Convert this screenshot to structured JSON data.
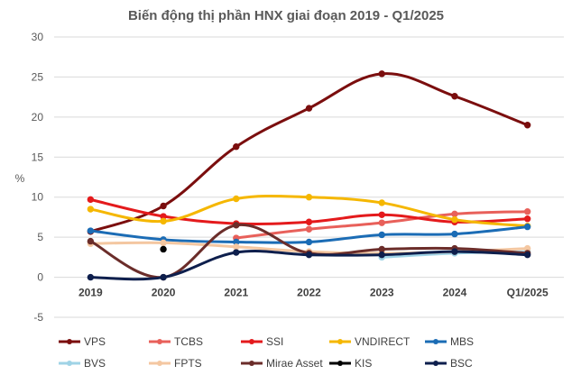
{
  "chart_data": {
    "type": "line",
    "title": "Biến động thị phần HNX giai đoạn 2019 - Q1/2025",
    "xlabel": "",
    "ylabel": "%",
    "categories": [
      "2019",
      "2020",
      "2021",
      "2022",
      "2023",
      "2024",
      "Q1/2025"
    ],
    "ylim": [
      -5,
      30
    ],
    "yticks": [
      -5,
      0,
      5,
      10,
      15,
      20,
      25,
      30
    ],
    "grid": true,
    "legend_position": "bottom",
    "series": [
      {
        "name": "VPS",
        "color": "#7b0e0e",
        "values": [
          5.7,
          8.9,
          16.3,
          21.1,
          25.4,
          22.6,
          19.0
        ]
      },
      {
        "name": "TCBS",
        "color": "#e8605a",
        "values": [
          null,
          null,
          4.9,
          6.0,
          6.8,
          7.9,
          8.2
        ]
      },
      {
        "name": "SSI",
        "color": "#e41a1c",
        "values": [
          9.7,
          7.6,
          6.7,
          6.9,
          7.8,
          6.9,
          7.3
        ]
      },
      {
        "name": "VNDIRECT",
        "color": "#f5b700",
        "values": [
          8.5,
          7.0,
          9.8,
          10.0,
          9.3,
          7.2,
          6.4
        ]
      },
      {
        "name": "MBS",
        "color": "#1b6cb5",
        "values": [
          5.8,
          4.7,
          4.4,
          4.4,
          5.3,
          5.4,
          6.3
        ]
      },
      {
        "name": "BVS",
        "color": "#9fd3e6",
        "values": [
          null,
          null,
          null,
          null,
          2.5,
          3.0,
          3.2
        ]
      },
      {
        "name": "FPTS",
        "color": "#f4c7a1",
        "values": [
          4.2,
          4.3,
          3.8,
          3.2,
          3.0,
          3.2,
          3.6
        ]
      },
      {
        "name": "Mirae Asset",
        "color": "#6b2d2a",
        "values": [
          4.5,
          0.0,
          6.5,
          3.0,
          3.5,
          3.6,
          3.0
        ]
      },
      {
        "name": "KIS",
        "color": "#000000",
        "values": [
          null,
          3.5,
          null,
          null,
          null,
          null,
          null
        ]
      },
      {
        "name": "BSC",
        "color": "#0e1f4d",
        "values": [
          0.0,
          0.0,
          3.1,
          2.8,
          2.8,
          3.2,
          2.8
        ]
      }
    ]
  }
}
